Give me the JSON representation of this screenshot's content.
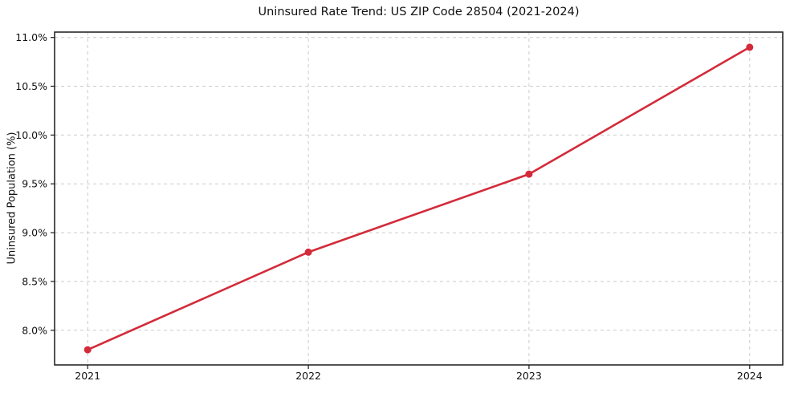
{
  "chart_data": {
    "type": "line",
    "title": "Uninsured Rate Trend: US ZIP Code 28504 (2021-2024)",
    "xlabel": "",
    "ylabel": "Uninsured Population (%)",
    "x": [
      2021,
      2022,
      2023,
      2024
    ],
    "x_tick_labels": [
      "2021",
      "2022",
      "2023",
      "2024"
    ],
    "y_ticks": [
      8.0,
      8.5,
      9.0,
      9.5,
      10.0,
      10.5,
      11.0
    ],
    "y_tick_labels": [
      "8.0%",
      "8.5%",
      "9.0%",
      "9.5%",
      "10.0%",
      "10.5%",
      "11.0%"
    ],
    "series": [
      {
        "name": "Uninsured rate",
        "values": [
          7.8,
          8.8,
          9.6,
          10.9
        ],
        "color": "#d32b3a",
        "marker": "circle"
      }
    ],
    "xlim": [
      2020.85,
      2024.15
    ],
    "ylim": [
      7.645,
      11.055
    ],
    "grid": true,
    "grid_style": "dashed",
    "grid_color": "#cbcbcb",
    "spine_color": "#1a1a1a",
    "tick_label_color": "#111111",
    "background": "#ffffff",
    "legend_position": "none"
  }
}
